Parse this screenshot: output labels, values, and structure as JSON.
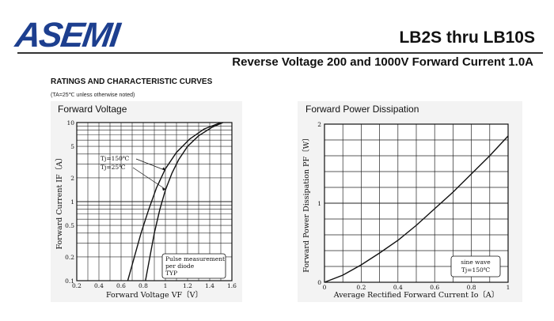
{
  "header": {
    "logo_text": "ASEMI",
    "model": "LB2S thru LB10S",
    "subtitle": "Reverse Voltage 200 and 1000V   Forward Current 1.0A",
    "section_title": "RATINGS AND CHARACTERISTIC CURVES",
    "note": "(TA=25℃ unless otherwise noted)"
  },
  "colors": {
    "logo": "#1d3f8f",
    "panel_bg": "#f3f3f3",
    "curve": "#111111"
  },
  "chart_data": [
    {
      "type": "line",
      "title": "Forward Voltage",
      "xlabel": "Forward Voltage VF〔V〕",
      "ylabel": "Forward Current IF〔A〕",
      "x_scale": "linear",
      "y_scale": "log",
      "xlim": [
        0.2,
        1.6
      ],
      "ylim": [
        0.1,
        10
      ],
      "x_ticks": [
        "0.2",
        "0.4",
        "0.6",
        "0.8",
        "1",
        "1.2",
        "1.4",
        "1.6"
      ],
      "y_ticks": [
        "0.1",
        "0.2",
        "0.5",
        "1",
        "2",
        "5",
        "10"
      ],
      "grid": true,
      "series": [
        {
          "name": "Tj=150℃",
          "x": [
            0.66,
            0.72,
            0.78,
            0.85,
            0.92,
            1.0,
            1.1,
            1.22,
            1.35,
            1.5
          ],
          "y": [
            0.1,
            0.2,
            0.4,
            0.8,
            1.5,
            2.6,
            4.2,
            6.2,
            8.3,
            10
          ]
        },
        {
          "name": "Tj=25℃",
          "x": [
            0.82,
            0.86,
            0.9,
            0.95,
            1.0,
            1.06,
            1.12,
            1.2,
            1.3,
            1.42,
            1.52
          ],
          "y": [
            0.1,
            0.2,
            0.4,
            0.8,
            1.4,
            2.3,
            3.4,
            5.0,
            6.8,
            8.7,
            10
          ]
        }
      ],
      "annotations": [
        "Pulse measurement",
        "per diode",
        "TYP"
      ]
    },
    {
      "type": "line",
      "title": "Forward Power Dissipation",
      "xlabel": "Average Rectified Forward Current Io〔A〕",
      "ylabel": "Forward Power Dissipation PF〔W〕",
      "xlim": [
        0,
        1
      ],
      "ylim": [
        0,
        2
      ],
      "x_ticks": [
        "0",
        "0.2",
        "0.4",
        "0.6",
        "0.8",
        "1"
      ],
      "y_ticks": [
        "0",
        "1",
        "2"
      ],
      "grid": true,
      "series": [
        {
          "name": "",
          "x": [
            0,
            0.1,
            0.2,
            0.3,
            0.4,
            0.5,
            0.6,
            0.7,
            0.8,
            0.9,
            1.0
          ],
          "y": [
            0,
            0.09,
            0.22,
            0.37,
            0.53,
            0.72,
            0.93,
            1.14,
            1.37,
            1.6,
            1.85
          ]
        }
      ],
      "annotations": [
        "sine wave",
        "Tj=150℃"
      ]
    }
  ]
}
